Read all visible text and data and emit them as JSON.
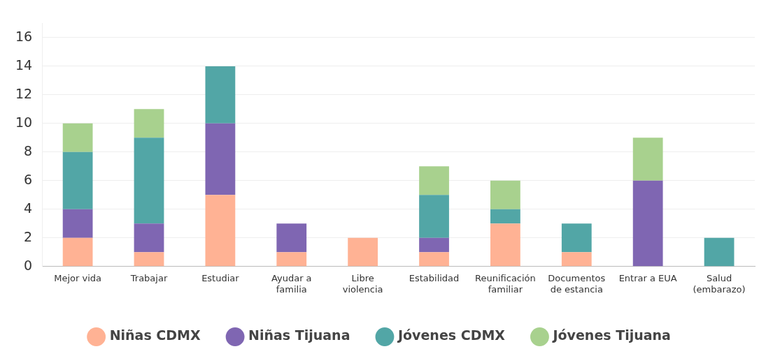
{
  "chart_data": {
    "type": "bar",
    "stacked": true,
    "categories": [
      "Mejor vida",
      "Trabajar",
      "Estudiar",
      "Ayudar a familia",
      "Libre violencia",
      "Estabilidad",
      "Reunificación familiar",
      "Documentos de estancia",
      "Entrar a EUA",
      "Salud (embarazo)"
    ],
    "series": [
      {
        "name": "Niñas CDMX",
        "color": "#ffb294",
        "values": [
          2,
          1,
          5,
          1,
          2,
          1,
          3,
          1,
          0,
          0
        ]
      },
      {
        "name": "Niñas Tijuana",
        "color": "#7f66b2",
        "values": [
          2,
          2,
          5,
          2,
          0,
          1,
          0,
          0,
          6,
          0
        ]
      },
      {
        "name": "Jóvenes CDMX",
        "color": "#52a6a6",
        "values": [
          4,
          6,
          4,
          0,
          0,
          3,
          1,
          2,
          0,
          2
        ]
      },
      {
        "name": "Jóvenes Tijuana",
        "color": "#a8d18e",
        "values": [
          2,
          2,
          0,
          0,
          0,
          2,
          2,
          0,
          3,
          0
        ]
      }
    ],
    "ylim": [
      0,
      17
    ],
    "yticks": [
      0,
      2,
      4,
      6,
      8,
      10,
      12,
      14,
      16
    ],
    "grid": "y",
    "legend": "bottom"
  }
}
